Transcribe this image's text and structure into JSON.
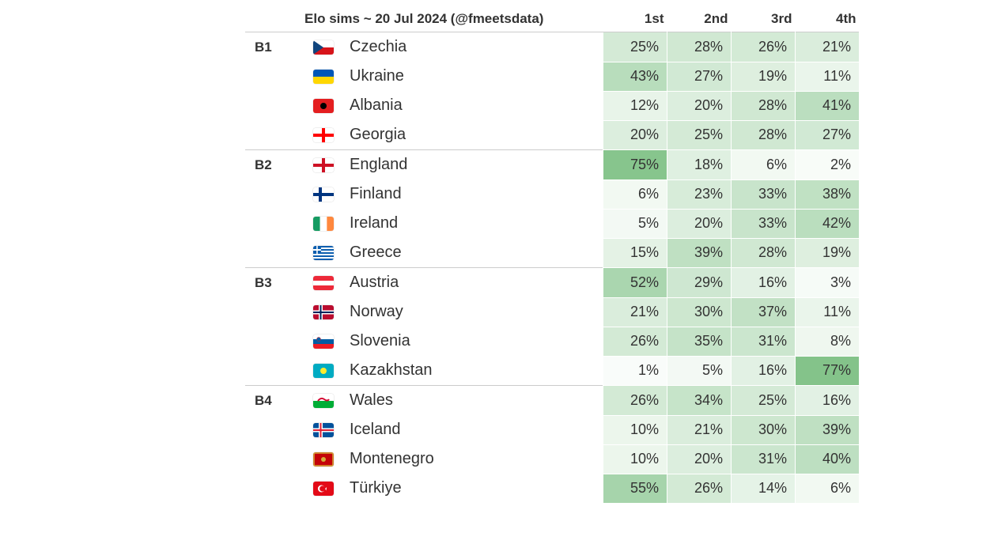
{
  "title": "Elo sims ~ 20 Jul 2024 (@fmeetsdata)",
  "column_headers": [
    "1st",
    "2nd",
    "3rd",
    "4th"
  ],
  "colors": {
    "text": "#333333",
    "border": "#cccccc",
    "background": "#ffffff",
    "scale_min": "#fbfdfb",
    "scale_max": "#7fc186"
  },
  "groups": [
    {
      "label": "B1",
      "teams": [
        {
          "country": "Czechia",
          "flag": "cz",
          "pcts": [
            25,
            28,
            26,
            21
          ]
        },
        {
          "country": "Ukraine",
          "flag": "ua",
          "pcts": [
            43,
            27,
            19,
            11
          ]
        },
        {
          "country": "Albania",
          "flag": "al",
          "pcts": [
            12,
            20,
            28,
            41
          ]
        },
        {
          "country": "Georgia",
          "flag": "ge",
          "pcts": [
            20,
            25,
            28,
            27
          ]
        }
      ]
    },
    {
      "label": "B2",
      "teams": [
        {
          "country": "England",
          "flag": "en",
          "pcts": [
            75,
            18,
            6,
            2
          ]
        },
        {
          "country": "Finland",
          "flag": "fi",
          "pcts": [
            6,
            23,
            33,
            38
          ]
        },
        {
          "country": "Ireland",
          "flag": "ie",
          "pcts": [
            5,
            20,
            33,
            42
          ]
        },
        {
          "country": "Greece",
          "flag": "gr",
          "pcts": [
            15,
            39,
            28,
            19
          ]
        }
      ]
    },
    {
      "label": "B3",
      "teams": [
        {
          "country": "Austria",
          "flag": "at",
          "pcts": [
            52,
            29,
            16,
            3
          ]
        },
        {
          "country": "Norway",
          "flag": "no",
          "pcts": [
            21,
            30,
            37,
            11
          ]
        },
        {
          "country": "Slovenia",
          "flag": "si",
          "pcts": [
            26,
            35,
            31,
            8
          ]
        },
        {
          "country": "Kazakhstan",
          "flag": "kz",
          "pcts": [
            1,
            5,
            16,
            77
          ]
        }
      ]
    },
    {
      "label": "B4",
      "teams": [
        {
          "country": "Wales",
          "flag": "wa",
          "pcts": [
            26,
            34,
            25,
            16
          ]
        },
        {
          "country": "Iceland",
          "flag": "is",
          "pcts": [
            10,
            21,
            30,
            39
          ]
        },
        {
          "country": "Montenegro",
          "flag": "me",
          "pcts": [
            10,
            20,
            31,
            40
          ]
        },
        {
          "country": "Türkiye",
          "flag": "tr",
          "pcts": [
            55,
            26,
            14,
            6
          ]
        }
      ]
    }
  ]
}
